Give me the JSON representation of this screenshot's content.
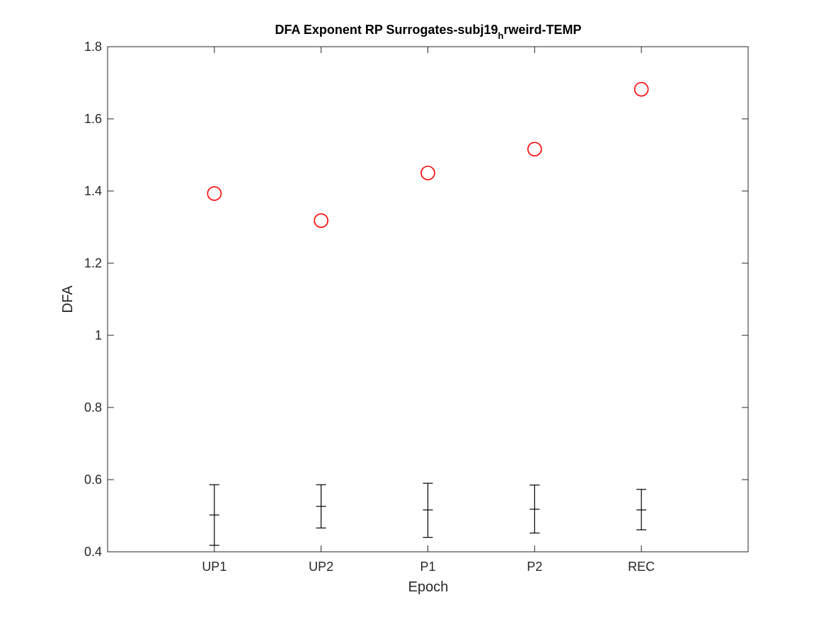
{
  "chart_data": {
    "type": "scatter",
    "title_main": "DFA Exponent RP Surrogates-subj19",
    "title_sub": "h",
    "title_rest": "rweird-TEMP",
    "xlabel": "Epoch",
    "ylabel": "DFA",
    "categories": [
      "UP1",
      "UP2",
      "P1",
      "P2",
      "REC"
    ],
    "ylim": [
      0.4,
      1.8
    ],
    "yticks": [
      "0.4",
      "0.6",
      "0.8",
      "1",
      "1.2",
      "1.4",
      "1.6",
      "1.8"
    ],
    "xlim": [
      -1,
      5
    ],
    "grid": false,
    "series": [
      {
        "marker": "circle",
        "color": "#ff0000",
        "values": [
          1.393,
          1.318,
          1.45,
          1.516,
          1.682
        ]
      },
      {
        "marker": "errorbar",
        "color": "#000000",
        "values": [
          0.502,
          0.526,
          0.516,
          0.518,
          0.516
        ],
        "lower": [
          0.418,
          0.466,
          0.44,
          0.452,
          0.461
        ],
        "upper": [
          0.586,
          0.586,
          0.59,
          0.585,
          0.573
        ]
      }
    ]
  }
}
